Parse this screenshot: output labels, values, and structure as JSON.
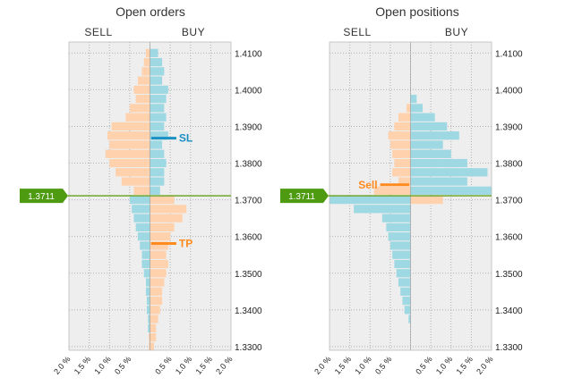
{
  "colors": {
    "sell": "#FFD2AD",
    "buy": "#9ED8E3",
    "plot_bg": "#EEEEEE",
    "grid": "#B0B0B0",
    "price_line": "#6FA62A",
    "price_label_bg": "#4E9A10",
    "sl_line": "#1A8FC4",
    "tp_line": "#FF8A1E"
  },
  "current_price": {
    "value": 1.3711,
    "label": "1.3711"
  },
  "chart_data": [
    {
      "type": "bar",
      "orientation": "horizontal-butterfly",
      "title": "Open orders",
      "left_label": "SELL",
      "right_label": "BUY",
      "ylim": [
        1.329,
        1.413
      ],
      "xlim": [
        -2.0,
        2.0
      ],
      "yticks": [
        "1.4100",
        "1.4000",
        "1.3900",
        "1.3800",
        "1.3700",
        "1.3600",
        "1.3500",
        "1.3400",
        "1.3300"
      ],
      "xticks": [
        "2.0 %",
        "1.5 %",
        "1.0 %",
        "0.5 %",
        "",
        "0.5 %",
        "1.0 %",
        "1.5 %",
        "2.0 %"
      ],
      "grid": true,
      "annotations": [
        {
          "text": "SL",
          "price": 1.3868,
          "from_pct": 0.03,
          "to_pct": 0.65,
          "color_key": "sl_line"
        },
        {
          "text": "TP",
          "price": 1.3581,
          "from_pct": 0.03,
          "to_pct": 0.65,
          "color_key": "tp_line"
        }
      ],
      "series": [
        {
          "name": "SELL",
          "color_key": "sell",
          "price": [
            1.41,
            1.4075,
            1.405,
            1.4025,
            1.4,
            1.3975,
            1.395,
            1.3925,
            1.39,
            1.3875,
            1.385,
            1.3825,
            1.38,
            1.3775,
            1.375,
            1.3725,
            1.36,
            1.3575,
            1.355,
            1.3525,
            1.35,
            1.3475,
            1.345,
            1.3425,
            1.34,
            1.3375,
            1.335,
            1.3325,
            1.33
          ],
          "pct": [
            0.1,
            0.15,
            0.2,
            0.3,
            0.4,
            0.35,
            0.5,
            0.6,
            0.95,
            1.05,
            1.0,
            1.1,
            1.0,
            0.85,
            0.7,
            0.4,
            0.05,
            0.03,
            0.03,
            0.03,
            0.03,
            0.03,
            0.03,
            0.03,
            0.03,
            0.03,
            0.03,
            0.03,
            0.03
          ]
        },
        {
          "name": "BUY",
          "color_key": "sell",
          "price": [
            1.37,
            1.3675,
            1.365,
            1.3625,
            1.36,
            1.3575,
            1.355,
            1.3525,
            1.35,
            1.3475,
            1.345,
            1.3425,
            1.34,
            1.3375,
            1.335,
            1.3325,
            1.33
          ],
          "pct": [
            0.6,
            0.9,
            0.8,
            0.6,
            0.5,
            0.45,
            0.4,
            0.45,
            0.4,
            0.35,
            0.3,
            0.3,
            0.25,
            0.2,
            0.15,
            0.15,
            0.1
          ]
        },
        {
          "name": "BUY",
          "color_key": "buy",
          "price": [
            1.41,
            1.4075,
            1.405,
            1.4025,
            1.4,
            1.3975,
            1.395,
            1.3925,
            1.39,
            1.3875,
            1.385,
            1.3825,
            1.38,
            1.3775,
            1.375,
            1.3725
          ],
          "pct": [
            0.2,
            0.3,
            0.35,
            0.3,
            0.45,
            0.4,
            0.35,
            0.4,
            0.35,
            0.45,
            0.3,
            0.35,
            0.4,
            0.35,
            0.35,
            0.25
          ]
        },
        {
          "name": "SELL",
          "color_key": "buy",
          "price": [
            1.37,
            1.3675,
            1.365,
            1.3625,
            1.36,
            1.3575,
            1.355,
            1.3525,
            1.35,
            1.3475,
            1.345,
            1.3425,
            1.34,
            1.3375,
            1.335
          ],
          "pct": [
            0.5,
            0.45,
            0.4,
            0.35,
            0.3,
            0.25,
            0.2,
            0.2,
            0.15,
            0.1,
            0.1,
            0.08,
            0.08,
            0.05,
            0.05
          ]
        }
      ]
    },
    {
      "type": "bar",
      "orientation": "horizontal-butterfly",
      "title": "Open positions",
      "left_label": "SELL",
      "right_label": "BUY",
      "ylim": [
        1.329,
        1.413
      ],
      "xlim": [
        -2.0,
        2.0
      ],
      "yticks": [
        "1.4100",
        "1.4000",
        "1.3900",
        "1.3800",
        "1.3700",
        "1.3600",
        "1.3500",
        "1.3400",
        "1.3300"
      ],
      "xticks": [
        "2.0 %",
        "1.5 %",
        "1.0 %",
        "0.5 %",
        "",
        "0.5 %",
        "1.0 %",
        "1.5 %",
        "2.0 %"
      ],
      "grid": true,
      "annotations": [
        {
          "text": "Sell",
          "price": 1.3741,
          "from_pct": -0.75,
          "to_pct": -0.03,
          "color_key": "tp_line"
        }
      ],
      "series": [
        {
          "name": "SELL",
          "color_key": "sell",
          "price": [
            1.395,
            1.3925,
            1.39,
            1.3875,
            1.385,
            1.3825,
            1.38,
            1.3775,
            1.375,
            1.3725
          ],
          "pct": [
            0.1,
            0.3,
            0.4,
            0.55,
            0.5,
            0.45,
            0.4,
            0.45,
            0.3,
            0.9
          ]
        },
        {
          "name": "BUY",
          "color_key": "sell",
          "price": [
            1.37
          ],
          "pct": [
            0.8
          ]
        },
        {
          "name": "BUY",
          "color_key": "buy",
          "price": [
            1.3975,
            1.395,
            1.3925,
            1.39,
            1.3875,
            1.385,
            1.3825,
            1.38,
            1.3775,
            1.375,
            1.3725
          ],
          "pct": [
            0.15,
            0.3,
            0.6,
            0.9,
            1.2,
            0.8,
            1.0,
            1.4,
            1.9,
            1.4,
            2.0
          ]
        },
        {
          "name": "SELL",
          "color_key": "buy",
          "price": [
            1.37,
            1.3675,
            1.365,
            1.3625,
            1.36,
            1.3575,
            1.355,
            1.3525,
            1.35,
            1.3475,
            1.345,
            1.3425,
            1.34,
            1.3375
          ],
          "pct": [
            2.0,
            1.4,
            0.7,
            0.6,
            0.55,
            0.5,
            0.45,
            0.4,
            0.35,
            0.3,
            0.25,
            0.2,
            0.15,
            0.05
          ]
        }
      ]
    }
  ]
}
